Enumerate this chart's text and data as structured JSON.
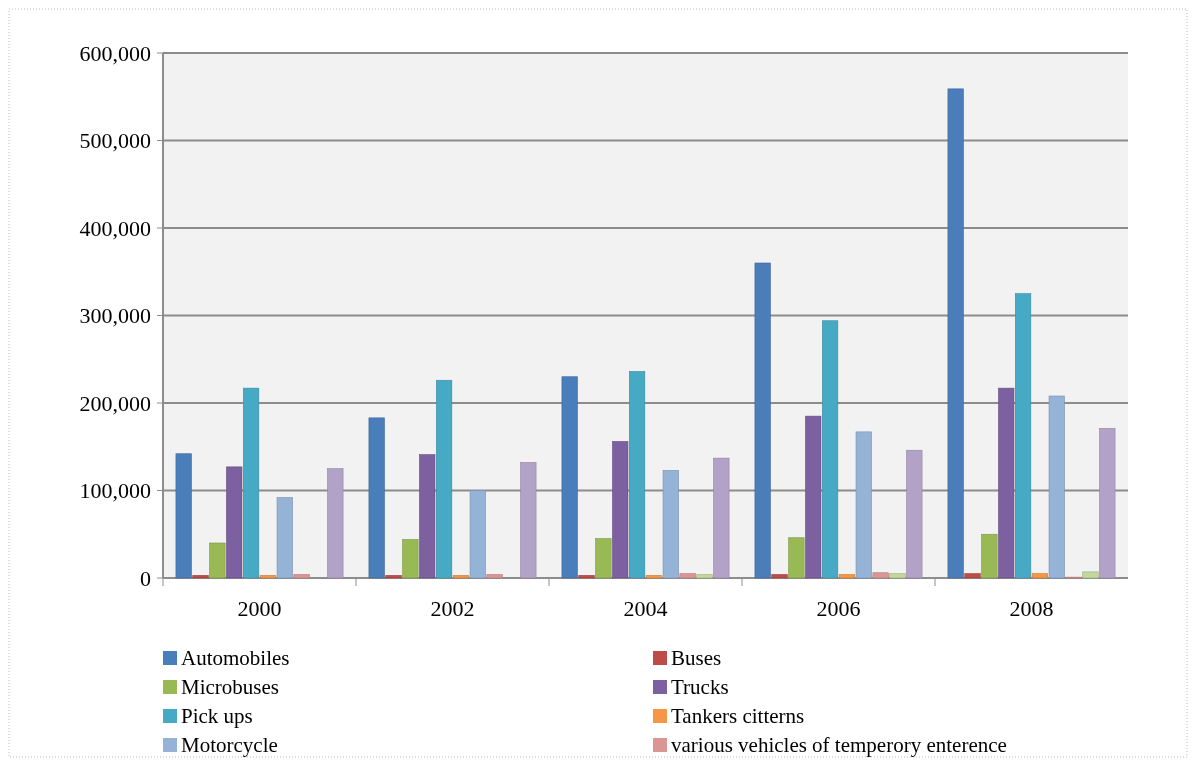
{
  "chart_data": {
    "type": "bar",
    "categories": [
      "2000",
      "2002",
      "2004",
      "2006",
      "2008"
    ],
    "ylim": [
      0,
      600000
    ],
    "yticks": [
      {
        "value": 0,
        "label": "0"
      },
      {
        "value": 100000,
        "label": "100,000"
      },
      {
        "value": 200000,
        "label": "200,000"
      },
      {
        "value": 300000,
        "label": "300,000"
      },
      {
        "value": 400000,
        "label": "400,000"
      },
      {
        "value": 500000,
        "label": "500,000"
      },
      {
        "value": 600000,
        "label": "600,000"
      }
    ],
    "grid": "y",
    "legend": "bottom",
    "series": [
      {
        "name": "Automobiles",
        "color": "#4a7ebb",
        "values": [
          142000,
          183000,
          230000,
          360000,
          559000
        ]
      },
      {
        "name": "Buses",
        "color": "#be4b48",
        "values": [
          3000,
          3000,
          3000,
          4000,
          5000
        ]
      },
      {
        "name": "Microbuses",
        "color": "#98b954",
        "values": [
          40000,
          44000,
          45000,
          46000,
          50000
        ]
      },
      {
        "name": "Trucks",
        "color": "#7d60a0",
        "values": [
          127000,
          141000,
          156000,
          185000,
          217000
        ]
      },
      {
        "name": "Pick ups",
        "color": "#46aac5",
        "values": [
          217000,
          226000,
          236000,
          294000,
          325000
        ]
      },
      {
        "name": "Tankers citterns",
        "color": "#f79646",
        "values": [
          3000,
          3000,
          3000,
          4000,
          5000
        ]
      },
      {
        "name": "Motorcycle",
        "color": "#95b3d7",
        "values": [
          92000,
          100000,
          123000,
          167000,
          208000
        ]
      },
      {
        "name": "various vehicles of temperory enterence",
        "color": "#da9694",
        "values": [
          4000,
          4000,
          5000,
          6000,
          1000
        ]
      },
      {
        "color": "#c3d69b",
        "values": [
          0,
          0,
          4000,
          5000,
          7000
        ]
      },
      {
        "color": "#b3a2c7",
        "values": [
          125000,
          132000,
          137000,
          146000,
          171000
        ]
      }
    ]
  }
}
